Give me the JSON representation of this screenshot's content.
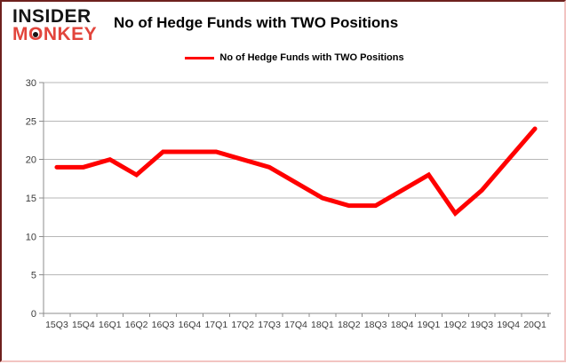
{
  "header": {
    "logo": {
      "top": "INSIDER",
      "bottom_pre": "M",
      "bottom_o": "O",
      "bottom_post": "NKEY",
      "color": "#e2453c"
    },
    "title": "No of Hedge Funds with TWO Positions"
  },
  "legend": {
    "label": "No of Hedge Funds with TWO Positions",
    "line_color": "#ff0000"
  },
  "chart_data": {
    "type": "line",
    "title": "No of Hedge Funds with TWO Positions",
    "categories": [
      "15Q3",
      "15Q4",
      "16Q1",
      "16Q2",
      "16Q3",
      "16Q4",
      "17Q1",
      "17Q2",
      "17Q3",
      "17Q4",
      "18Q1",
      "18Q2",
      "18Q3",
      "18Q4",
      "19Q1",
      "19Q2",
      "19Q3",
      "19Q4",
      "20Q1"
    ],
    "series": [
      {
        "name": "No of Hedge Funds with TWO Positions",
        "color": "#ff0000",
        "values": [
          19,
          19,
          20,
          18,
          21,
          21,
          21,
          20,
          19,
          17,
          15,
          14,
          14,
          16,
          18,
          13,
          16,
          20,
          24
        ]
      }
    ],
    "xlabel": "",
    "ylabel": "",
    "ylim": [
      0,
      30
    ],
    "yticks": [
      0,
      5,
      10,
      15,
      20,
      25,
      30
    ],
    "grid": true,
    "legend_position": "top-center",
    "colors": {
      "grid": "#b7b7b7",
      "axis": "#8c8c8c",
      "tick_label": "#3a3a3a"
    }
  }
}
